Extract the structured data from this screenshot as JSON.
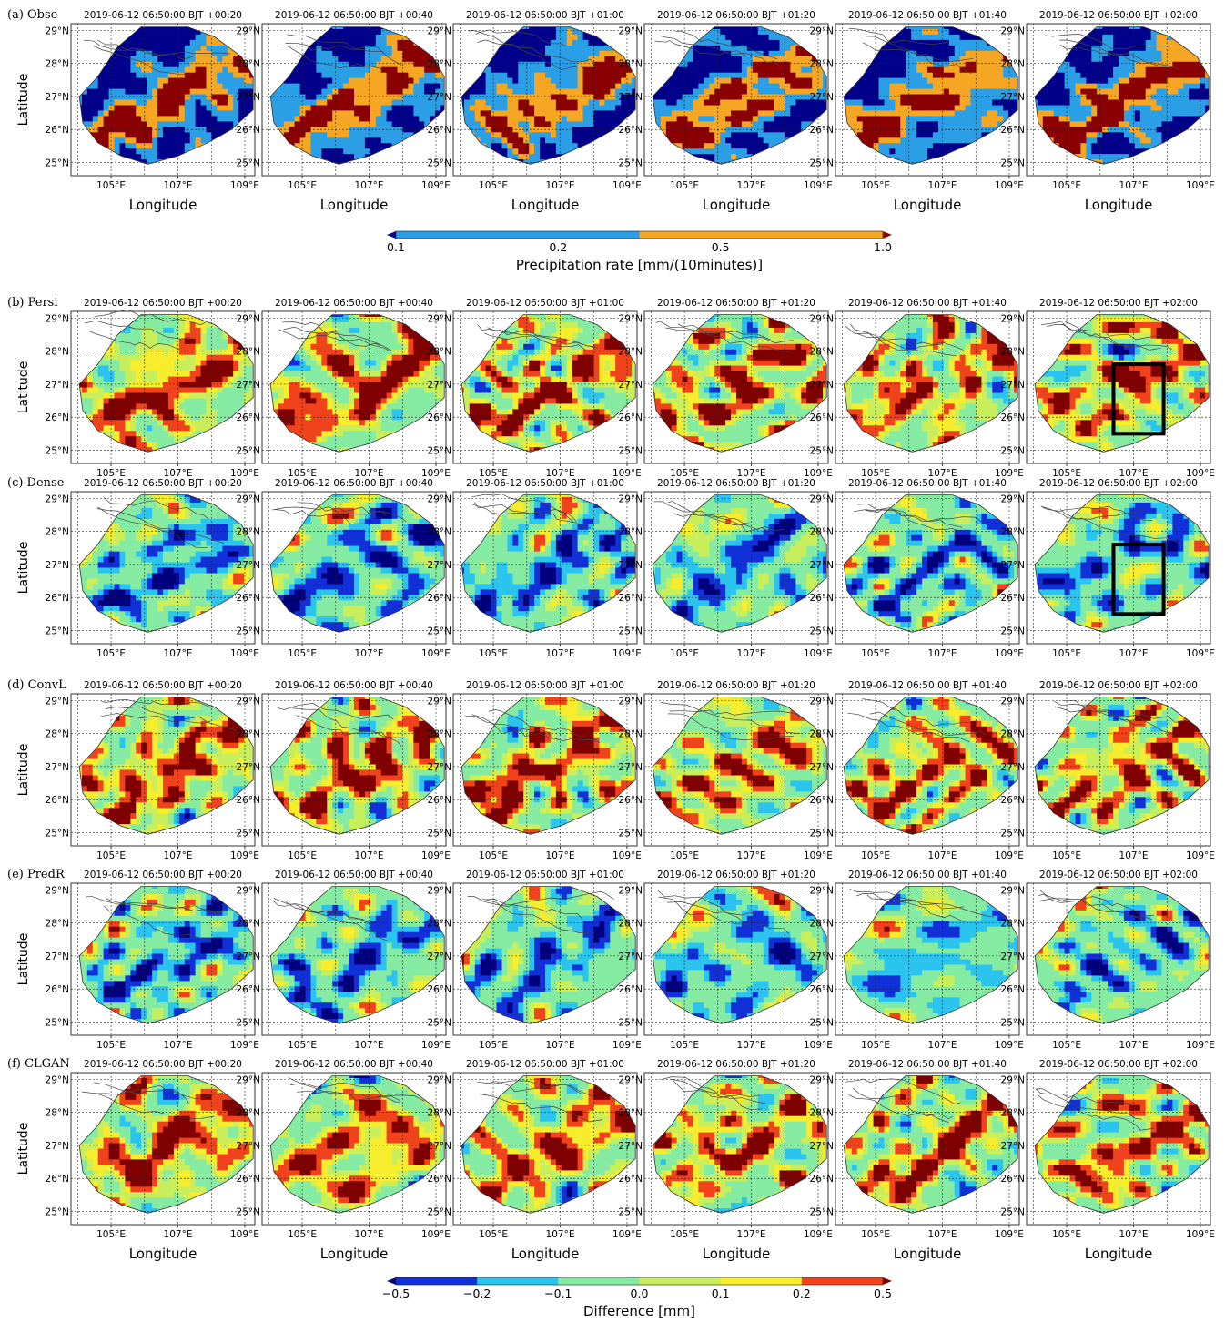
{
  "figure": {
    "timestamp": "2019-06-12 06:50:00 BJT",
    "lead_times": [
      "+00:20",
      "+00:40",
      "+01:00",
      "+01:20",
      "+01:40",
      "+02:00"
    ],
    "x_axis_label": "Longitude",
    "y_axis_label": "Latitude",
    "x_tick_labels": [
      "105°E",
      "107°E",
      "109°E"
    ],
    "y_tick_labels": [
      "29°N",
      "28°N",
      "27°N",
      "26°N",
      "25°N"
    ]
  },
  "rows": [
    {
      "label": "(a) Obse",
      "kind": "observation"
    },
    {
      "label": "(b) Persi",
      "kind": "difference"
    },
    {
      "label": "(c) Dense",
      "kind": "difference"
    },
    {
      "label": "(d) ConvL",
      "kind": "difference"
    },
    {
      "label": "(e) PredR",
      "kind": "difference"
    },
    {
      "label": "(f) CLGAN",
      "kind": "difference"
    }
  ],
  "colorbars": {
    "precipitation": {
      "label": "Precipitation rate [mm/(10minutes)]",
      "ticks": [
        "0.1",
        "0.2",
        "0.5",
        "1.0"
      ],
      "colors": [
        "#00008b",
        "#2b9fe6",
        "#f5a623",
        "#8b0000"
      ]
    },
    "difference": {
      "label": "Difference [mm]",
      "ticks": [
        "−0.5",
        "−0.2",
        "−0.1",
        "0.0",
        "0.1",
        "0.2",
        "0.5"
      ],
      "colors": [
        "#00007f",
        "#1230d8",
        "#2bc4ee",
        "#86eba2",
        "#c8ee5c",
        "#f8ed2c",
        "#f0431c",
        "#7f0000"
      ]
    }
  },
  "chart_data": {
    "type": "heatmap",
    "title": "",
    "description_values": {
      "x_range": [
        103.8,
        109.3
      ],
      "y_range": [
        24.6,
        29.2
      ],
      "x_ticks": [
        105,
        107,
        109
      ],
      "y_ticks": [
        25,
        26,
        27,
        28,
        29
      ],
      "grid": true,
      "highlight_boxes": [
        {
          "row": "(b) Persi",
          "lead_time": "+02:00",
          "lon": [
            106.4,
            107.9
          ],
          "lat": [
            25.5,
            27.6
          ]
        },
        {
          "row": "(c) Dense",
          "lead_time": "+02:00",
          "lon": [
            106.4,
            107.9
          ],
          "lat": [
            25.5,
            27.6
          ]
        }
      ]
    }
  }
}
